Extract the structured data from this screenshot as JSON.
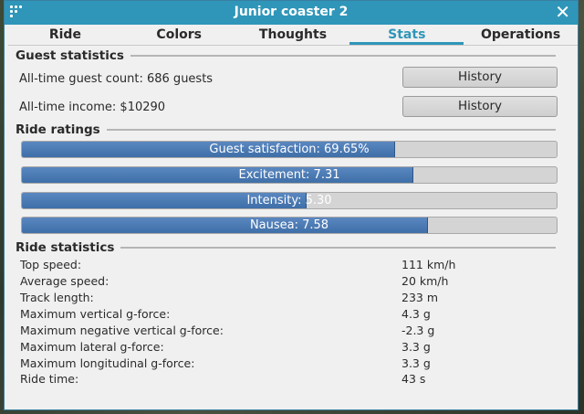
{
  "window": {
    "title": "Junior coaster 2"
  },
  "tabs": [
    "Ride",
    "Colors",
    "Thoughts",
    "Stats",
    "Operations"
  ],
  "active_tab": "Stats",
  "guest_statistics": {
    "heading": "Guest statistics",
    "guest_count": "All-time guest count: 686 guests",
    "income": "All-time income: $10290",
    "history_label": "History"
  },
  "ride_ratings": {
    "heading": "Ride ratings",
    "bars": [
      {
        "label": "Guest satisfaction: 69.65%",
        "fraction": 0.6965
      },
      {
        "label": "Excitement: 7.31",
        "fraction": 0.731
      },
      {
        "label": "Intensity: 5.30",
        "fraction": 0.53
      },
      {
        "label": "Nausea: 7.58",
        "fraction": 0.758
      }
    ]
  },
  "ride_statistics": {
    "heading": "Ride statistics",
    "rows": [
      {
        "label": "Top speed:",
        "value": "111 km/h"
      },
      {
        "label": "Average speed:",
        "value": "20 km/h"
      },
      {
        "label": "Track length:",
        "value": "233 m"
      },
      {
        "label": "Maximum vertical g-force:",
        "value": "4.3 g"
      },
      {
        "label": "Maximum negative vertical g-force:",
        "value": "-2.3 g"
      },
      {
        "label": "Maximum lateral g-force:",
        "value": "3.3 g"
      },
      {
        "label": "Maximum longitudinal g-force:",
        "value": "3.3 g"
      },
      {
        "label": "Ride time:",
        "value": "43 s"
      }
    ]
  },
  "colors": {
    "accent": "#2f96b9",
    "bar_fill": "#4a78b4",
    "bar_track": "#d4d4d4"
  }
}
